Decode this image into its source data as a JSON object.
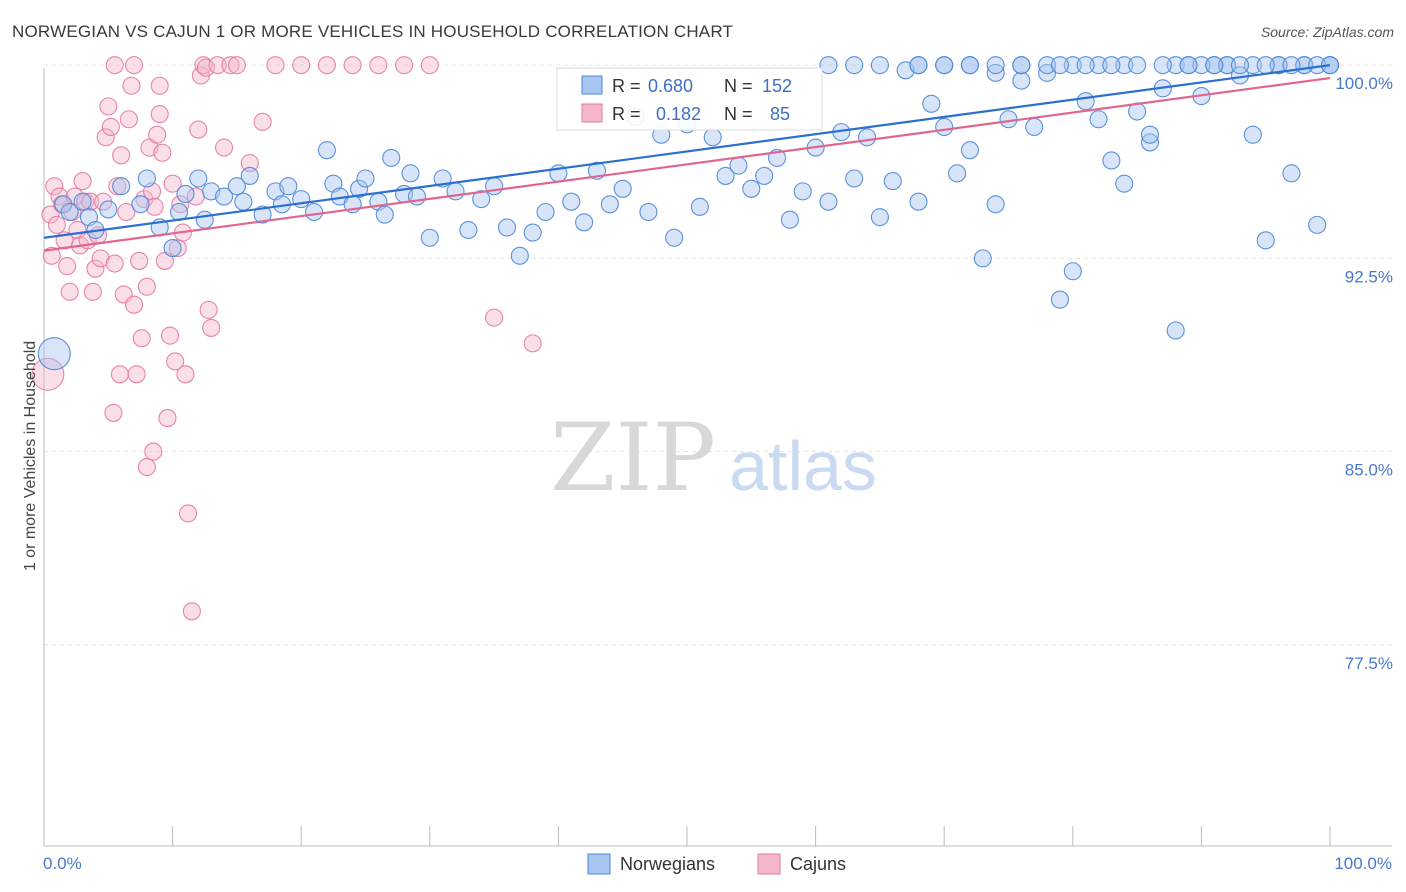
{
  "title": "NORWEGIAN VS CAJUN 1 OR MORE VEHICLES IN HOUSEHOLD CORRELATION CHART",
  "source": "Source: ZipAtlas.com",
  "colors": {
    "blue": "#4a86d8",
    "blue_fill": "#a9c6f0",
    "blue_line": "#2b6fcf",
    "pink": "#e47a9d",
    "pink_fill": "#f5b8cb",
    "pink_line": "#e0668f",
    "tick_label": "#4a78c8",
    "grid": "#e2e2e2"
  },
  "chart_data": {
    "type": "scatter",
    "ylabel": "1 or more Vehicles in Household",
    "xlim": [
      0,
      100
    ],
    "ylim": [
      70,
      100.2
    ],
    "x_tick_labels": [
      "0.0%",
      "100.0%"
    ],
    "y_ticks": [
      77.5,
      85.0,
      92.5,
      100.0
    ],
    "y_tick_labels": [
      "77.5%",
      "85.0%",
      "92.5%",
      "100.0%"
    ],
    "watermark": {
      "zip": "ZIP",
      "atlas": "atlas"
    },
    "legend_box": {
      "rows": [
        {
          "r_label": "R =",
          "r": "0.680",
          "n_label": "N =",
          "n": "152"
        },
        {
          "r_label": "R =",
          "r": "0.182",
          "n_label": "N =",
          "n": "85"
        }
      ]
    },
    "series": [
      {
        "name": "Norwegians",
        "r": 0.68,
        "n": 152,
        "trend": {
          "x": [
            0,
            100
          ],
          "y": [
            93.3,
            100.0
          ]
        },
        "points": [
          [
            0.8,
            88.8
          ],
          [
            1.5,
            94.6
          ],
          [
            2,
            94.3
          ],
          [
            3,
            94.7
          ],
          [
            3.5,
            94.1
          ],
          [
            4,
            93.6
          ],
          [
            5,
            94.4
          ],
          [
            6,
            95.3
          ],
          [
            7.5,
            94.6
          ],
          [
            8,
            95.6
          ],
          [
            9,
            93.7
          ],
          [
            10,
            92.9
          ],
          [
            10.5,
            94.3
          ],
          [
            11,
            95.0
          ],
          [
            12,
            95.6
          ],
          [
            12.5,
            94.0
          ],
          [
            13,
            95.1
          ],
          [
            14,
            94.9
          ],
          [
            15,
            95.3
          ],
          [
            15.5,
            94.7
          ],
          [
            16,
            95.7
          ],
          [
            17,
            94.2
          ],
          [
            18,
            95.1
          ],
          [
            18.5,
            94.6
          ],
          [
            19,
            95.3
          ],
          [
            20,
            94.8
          ],
          [
            21,
            94.3
          ],
          [
            22,
            96.7
          ],
          [
            22.5,
            95.4
          ],
          [
            23,
            94.9
          ],
          [
            24,
            94.6
          ],
          [
            24.5,
            95.2
          ],
          [
            25,
            95.6
          ],
          [
            26,
            94.7
          ],
          [
            26.5,
            94.2
          ],
          [
            27,
            96.4
          ],
          [
            28,
            95.0
          ],
          [
            28.5,
            95.8
          ],
          [
            29,
            94.9
          ],
          [
            30,
            93.3
          ],
          [
            31,
            95.6
          ],
          [
            32,
            95.1
          ],
          [
            33,
            93.6
          ],
          [
            34,
            94.8
          ],
          [
            35,
            95.3
          ],
          [
            36,
            93.7
          ],
          [
            37,
            92.6
          ],
          [
            38,
            93.5
          ],
          [
            39,
            94.3
          ],
          [
            40,
            95.8
          ],
          [
            41,
            94.7
          ],
          [
            42,
            93.9
          ],
          [
            43,
            95.9
          ],
          [
            44,
            94.6
          ],
          [
            45,
            95.2
          ],
          [
            46,
            98.0
          ],
          [
            47,
            94.3
          ],
          [
            48,
            97.3
          ],
          [
            49,
            93.3
          ],
          [
            50,
            97.7
          ],
          [
            51,
            94.5
          ],
          [
            52,
            97.2
          ],
          [
            53,
            95.7
          ],
          [
            54,
            96.1
          ],
          [
            55,
            95.2
          ],
          [
            56,
            95.7
          ],
          [
            57,
            96.4
          ],
          [
            58,
            94.0
          ],
          [
            59,
            95.1
          ],
          [
            60,
            96.8
          ],
          [
            61,
            94.7
          ],
          [
            62,
            97.4
          ],
          [
            63,
            95.6
          ],
          [
            64,
            97.2
          ],
          [
            65,
            94.1
          ],
          [
            66,
            95.5
          ],
          [
            67,
            99.8
          ],
          [
            68,
            94.7
          ],
          [
            69,
            98.5
          ],
          [
            70,
            97.6
          ],
          [
            71,
            95.8
          ],
          [
            72,
            96.7
          ],
          [
            73,
            92.5
          ],
          [
            74,
            94.6
          ],
          [
            75,
            97.9
          ],
          [
            76,
            99.4
          ],
          [
            77,
            97.6
          ],
          [
            78,
            99.7
          ],
          [
            79,
            90.9
          ],
          [
            80,
            92.0
          ],
          [
            81,
            98.6
          ],
          [
            82,
            97.9
          ],
          [
            83,
            96.3
          ],
          [
            84,
            95.4
          ],
          [
            85,
            98.2
          ],
          [
            86,
            97.0
          ],
          [
            87,
            99.1
          ],
          [
            88,
            100
          ],
          [
            89,
            100
          ],
          [
            90,
            98.8
          ],
          [
            91,
            100
          ],
          [
            92,
            100
          ],
          [
            93,
            99.6
          ],
          [
            94,
            100
          ],
          [
            95,
            93.2
          ],
          [
            96,
            100
          ],
          [
            97,
            95.8
          ],
          [
            98,
            100
          ],
          [
            99,
            93.8
          ],
          [
            100,
            100
          ],
          [
            68,
            100
          ],
          [
            70,
            100
          ],
          [
            72,
            100
          ],
          [
            74,
            99.7
          ],
          [
            76,
            100
          ],
          [
            78,
            100
          ],
          [
            80,
            100
          ],
          [
            82,
            100
          ],
          [
            84,
            100
          ],
          [
            86,
            97.3
          ],
          [
            88,
            89.7
          ],
          [
            90,
            100
          ],
          [
            92,
            100
          ],
          [
            94,
            97.3
          ],
          [
            96,
            100
          ],
          [
            98,
            100
          ],
          [
            100,
            100
          ],
          [
            61,
            100
          ],
          [
            63,
            100
          ],
          [
            65,
            100
          ],
          [
            68,
            100
          ],
          [
            70,
            100
          ],
          [
            72,
            100
          ],
          [
            74,
            100
          ],
          [
            76,
            100
          ],
          [
            79,
            100
          ],
          [
            81,
            100
          ],
          [
            83,
            100
          ],
          [
            85,
            100
          ],
          [
            87,
            100
          ],
          [
            89,
            100
          ],
          [
            91,
            100
          ],
          [
            93,
            100
          ],
          [
            95,
            100
          ],
          [
            97,
            100
          ],
          [
            99,
            100
          ],
          [
            100,
            100
          ]
        ]
      },
      {
        "name": "Cajuns",
        "r": 0.182,
        "n": 85,
        "trend": {
          "x": [
            0,
            100
          ],
          "y": [
            92.8,
            99.5
          ]
        },
        "points": [
          [
            0.3,
            88.0
          ],
          [
            0.5,
            94.2
          ],
          [
            0.6,
            92.6
          ],
          [
            0.8,
            95.3
          ],
          [
            1.0,
            93.8
          ],
          [
            1.2,
            94.9
          ],
          [
            1.4,
            94.6
          ],
          [
            1.6,
            93.2
          ],
          [
            1.8,
            92.2
          ],
          [
            2,
            91.2
          ],
          [
            2.2,
            94.3
          ],
          [
            2.4,
            94.9
          ],
          [
            2.6,
            93.6
          ],
          [
            2.8,
            93.0
          ],
          [
            3,
            95.5
          ],
          [
            3.2,
            94.7
          ],
          [
            3.4,
            93.2
          ],
          [
            3.6,
            94.7
          ],
          [
            3.8,
            91.2
          ],
          [
            4,
            92.1
          ],
          [
            4.2,
            93.4
          ],
          [
            4.4,
            92.5
          ],
          [
            4.6,
            94.7
          ],
          [
            4.8,
            97.2
          ],
          [
            5,
            98.4
          ],
          [
            5.2,
            97.6
          ],
          [
            5.4,
            86.5
          ],
          [
            5.5,
            92.3
          ],
          [
            5.7,
            95.3
          ],
          [
            5.9,
            88.0
          ],
          [
            6,
            96.5
          ],
          [
            6.2,
            91.1
          ],
          [
            6.4,
            94.3
          ],
          [
            6.6,
            97.9
          ],
          [
            6.8,
            99.2
          ],
          [
            7,
            90.7
          ],
          [
            7.2,
            88.0
          ],
          [
            7.4,
            92.4
          ],
          [
            7.6,
            89.4
          ],
          [
            7.8,
            94.8
          ],
          [
            8,
            91.4
          ],
          [
            8.2,
            96.8
          ],
          [
            8.4,
            95.1
          ],
          [
            8.6,
            94.5
          ],
          [
            8.8,
            97.3
          ],
          [
            9,
            98.1
          ],
          [
            9.2,
            96.6
          ],
          [
            9.4,
            92.4
          ],
          [
            9.6,
            86.3
          ],
          [
            9.8,
            89.5
          ],
          [
            10,
            95.4
          ],
          [
            10.2,
            88.5
          ],
          [
            10.4,
            92.9
          ],
          [
            10.6,
            94.6
          ],
          [
            10.8,
            93.5
          ],
          [
            11,
            88.0
          ],
          [
            11.2,
            82.6
          ],
          [
            11.5,
            78.8
          ],
          [
            11.8,
            94.9
          ],
          [
            12,
            97.5
          ],
          [
            12.2,
            99.6
          ],
          [
            12.4,
            100
          ],
          [
            12.6,
            99.9
          ],
          [
            12.8,
            90.5
          ],
          [
            13,
            89.8
          ],
          [
            13.5,
            100
          ],
          [
            14,
            96.8
          ],
          [
            14.5,
            100
          ],
          [
            15,
            100
          ],
          [
            16,
            96.2
          ],
          [
            17,
            97.8
          ],
          [
            18,
            100
          ],
          [
            20,
            100
          ],
          [
            22,
            100
          ],
          [
            24,
            100
          ],
          [
            26,
            100
          ],
          [
            28,
            100
          ],
          [
            30,
            100
          ],
          [
            35,
            90.2
          ],
          [
            38,
            89.2
          ],
          [
            8,
            84.4
          ],
          [
            8.5,
            85.0
          ],
          [
            9,
            99.2
          ],
          [
            5.5,
            100
          ],
          [
            7,
            100
          ]
        ]
      }
    ]
  }
}
